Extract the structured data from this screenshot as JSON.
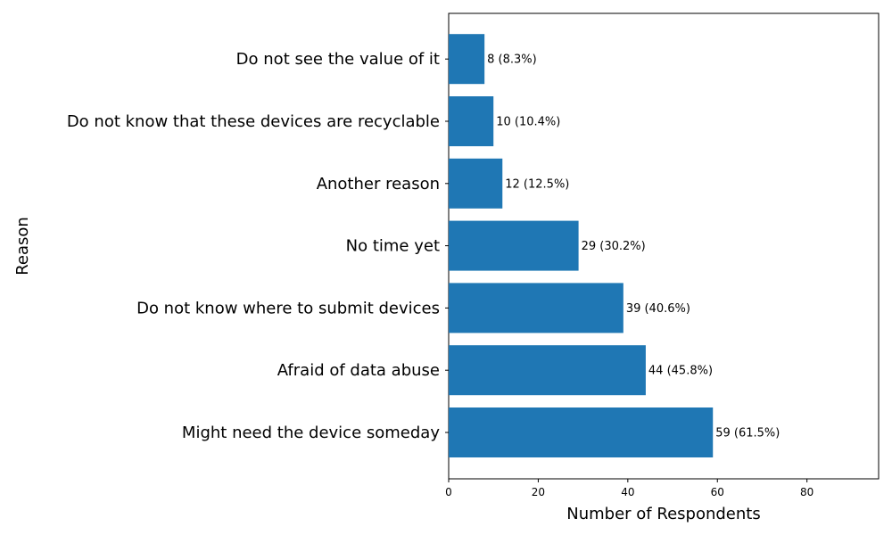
{
  "chart_data": {
    "type": "bar",
    "orientation": "horizontal",
    "categories": [
      "Might need the device someday",
      "Afraid of data abuse",
      "Do not know where to submit devices",
      "No time yet",
      "Another reason",
      "Do not know that these devices are recyclable",
      "Do not see the value of it"
    ],
    "values": [
      59,
      44,
      39,
      29,
      12,
      10,
      8
    ],
    "data_labels": [
      "59 (61.5%)",
      "44 (45.8%)",
      "39 (40.6%)",
      "29 (30.2%)",
      "12 (12.5%)",
      "10 (10.4%)",
      "8 (8.3%)"
    ],
    "xlabel": "Number of Respondents",
    "ylabel": "Reason",
    "xlim": [
      0,
      96
    ],
    "x_ticks": [
      0,
      20,
      40,
      60,
      80
    ],
    "grid": false,
    "bar_color": "#1f77b4"
  }
}
